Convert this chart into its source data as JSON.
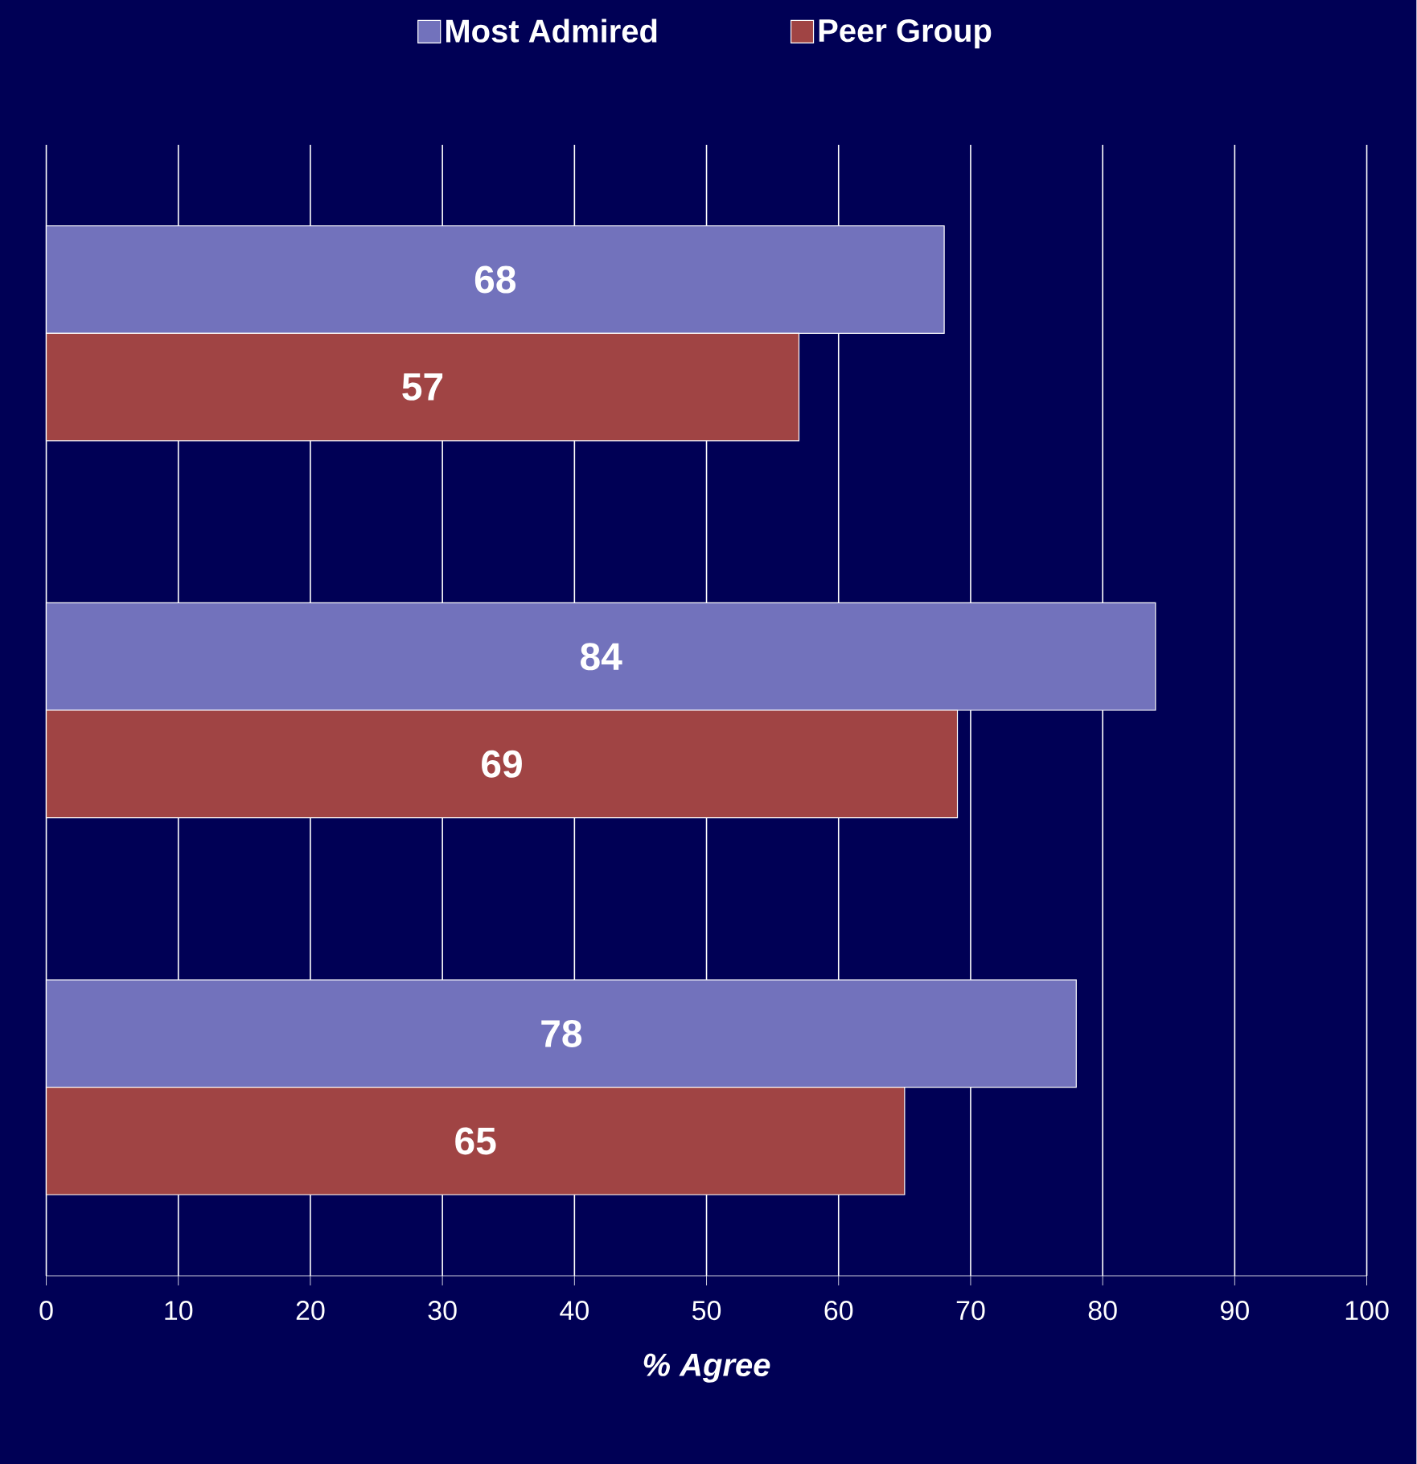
{
  "chart_data": {
    "type": "bar",
    "orientation": "horizontal",
    "categories": [
      null,
      null,
      null
    ],
    "series": [
      {
        "name": "Most Admired",
        "color": "#7272bc",
        "values": [
          68,
          84,
          78
        ]
      },
      {
        "name": "Peer Group",
        "color": "#a04444",
        "values": [
          57,
          69,
          65
        ]
      }
    ],
    "xlim": [
      0,
      100
    ],
    "xticks": [
      0,
      10,
      20,
      30,
      40,
      50,
      60,
      70,
      80,
      90,
      100
    ],
    "xlabel": "% Agree",
    "grid": "x",
    "legend": "top",
    "data_labels": true,
    "tick_labels": "x"
  }
}
